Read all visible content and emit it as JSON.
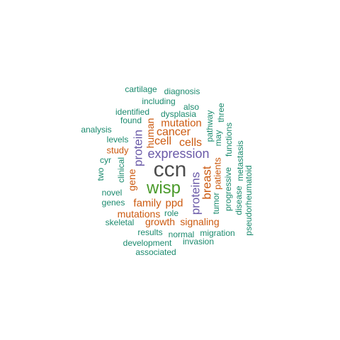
{
  "palette": {
    "large": "#4d4d4d",
    "green": "#4a9a2a",
    "purple": "#6a5aa8",
    "orange": "#cc5a10",
    "teal": "#1b8a6e"
  },
  "words": [
    {
      "id": "ccn",
      "text": "ccn",
      "color": "large"
    },
    {
      "id": "wisp",
      "text": "wisp",
      "color": "green"
    },
    {
      "id": "expression",
      "text": "expression",
      "color": "purple"
    },
    {
      "id": "protein",
      "text": "protein",
      "color": "purple"
    },
    {
      "id": "proteins",
      "text": "proteins",
      "color": "purple"
    },
    {
      "id": "breast",
      "text": "breast",
      "color": "orange"
    },
    {
      "id": "cancer",
      "text": "cancer",
      "color": "orange"
    },
    {
      "id": "cells",
      "text": "cells",
      "color": "orange"
    },
    {
      "id": "cell",
      "text": "cell",
      "color": "orange"
    },
    {
      "id": "mutation",
      "text": "mutation",
      "color": "orange"
    },
    {
      "id": "human",
      "text": "human",
      "color": "orange"
    },
    {
      "id": "family",
      "text": "family",
      "color": "orange"
    },
    {
      "id": "ppd",
      "text": "ppd",
      "color": "orange"
    },
    {
      "id": "gene",
      "text": "gene",
      "color": "orange"
    },
    {
      "id": "patients",
      "text": "patients",
      "color": "orange"
    },
    {
      "id": "study",
      "text": "study",
      "color": "orange"
    },
    {
      "id": "mutations",
      "text": "mutations",
      "color": "orange"
    },
    {
      "id": "growth",
      "text": "growth",
      "color": "orange"
    },
    {
      "id": "signaling",
      "text": "signaling",
      "color": "orange"
    },
    {
      "id": "cartilage",
      "text": "cartilage",
      "color": "teal"
    },
    {
      "id": "diagnosis",
      "text": "diagnosis",
      "color": "teal"
    },
    {
      "id": "including",
      "text": "including",
      "color": "teal"
    },
    {
      "id": "also",
      "text": "also",
      "color": "teal"
    },
    {
      "id": "identified",
      "text": "identified",
      "color": "teal"
    },
    {
      "id": "dysplasia",
      "text": "dysplasia",
      "color": "teal"
    },
    {
      "id": "found",
      "text": "found",
      "color": "teal"
    },
    {
      "id": "analysis",
      "text": "analysis",
      "color": "teal"
    },
    {
      "id": "levels",
      "text": "levels",
      "color": "teal"
    },
    {
      "id": "two",
      "text": "two",
      "color": "teal"
    },
    {
      "id": "cyr",
      "text": "cyr",
      "color": "teal"
    },
    {
      "id": "clinical",
      "text": "clinical",
      "color": "teal"
    },
    {
      "id": "novel",
      "text": "novel",
      "color": "teal"
    },
    {
      "id": "genes",
      "text": "genes",
      "color": "teal"
    },
    {
      "id": "role",
      "text": "role",
      "color": "teal"
    },
    {
      "id": "skeletal",
      "text": "skeletal",
      "color": "teal"
    },
    {
      "id": "results",
      "text": "results",
      "color": "teal"
    },
    {
      "id": "normal",
      "text": "normal",
      "color": "teal"
    },
    {
      "id": "migration",
      "text": "migration",
      "color": "teal"
    },
    {
      "id": "development",
      "text": "development",
      "color": "teal"
    },
    {
      "id": "invasion",
      "text": "invasion",
      "color": "teal"
    },
    {
      "id": "associated",
      "text": "associated",
      "color": "teal"
    },
    {
      "id": "pathway",
      "text": "pathway",
      "color": "teal"
    },
    {
      "id": "may",
      "text": "may",
      "color": "teal"
    },
    {
      "id": "three",
      "text": "three",
      "color": "teal"
    },
    {
      "id": "functions",
      "text": "functions",
      "color": "teal"
    },
    {
      "id": "tumor",
      "text": "tumor",
      "color": "teal"
    },
    {
      "id": "progressive",
      "text": "progressive",
      "color": "teal"
    },
    {
      "id": "disease",
      "text": "disease",
      "color": "teal"
    },
    {
      "id": "metastasis",
      "text": "metastasis",
      "color": "teal"
    },
    {
      "id": "pseudorheumatoid",
      "text": "pseudorheumatoid",
      "color": "teal"
    }
  ]
}
